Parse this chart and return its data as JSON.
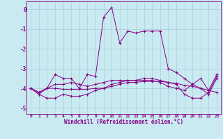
{
  "title": "",
  "xlabel": "Windchill (Refroidissement éolien,°C)",
  "xlim": [
    -0.5,
    23.5
  ],
  "ylim": [
    -5.3,
    0.4
  ],
  "yticks": [
    0,
    -1,
    -2,
    -3,
    -4,
    -5
  ],
  "xticks": [
    0,
    1,
    2,
    3,
    4,
    5,
    6,
    7,
    8,
    9,
    10,
    11,
    12,
    13,
    14,
    15,
    16,
    17,
    18,
    19,
    20,
    21,
    22,
    23
  ],
  "bg_color": "#c8eaf0",
  "line_color": "#880088",
  "grid_color": "#aaccdd",
  "lines": [
    {
      "x": [
        0,
        1,
        2,
        3,
        4,
        5,
        6,
        7,
        8,
        9,
        10,
        11,
        12,
        13,
        14,
        15,
        16,
        17,
        18,
        19,
        20,
        21,
        22,
        23
      ],
      "y": [
        -4.0,
        -4.2,
        -4.0,
        -3.3,
        -3.5,
        -3.5,
        -4.0,
        -3.3,
        -3.4,
        -0.4,
        0.1,
        -1.7,
        -1.1,
        -1.2,
        -1.1,
        -1.1,
        -1.1,
        -3.0,
        -3.2,
        -3.5,
        -3.8,
        -3.5,
        -4.1,
        -3.3
      ]
    },
    {
      "x": [
        0,
        1,
        2,
        3,
        4,
        5,
        6,
        7,
        8,
        9,
        10,
        11,
        12,
        13,
        14,
        15,
        16,
        17,
        18,
        19,
        20,
        21,
        22,
        23
      ],
      "y": [
        -4.0,
        -4.2,
        -4.0,
        -4.0,
        -4.05,
        -4.05,
        -4.05,
        -4.05,
        -4.0,
        -4.0,
        -3.9,
        -3.8,
        -3.7,
        -3.7,
        -3.65,
        -3.65,
        -3.65,
        -3.7,
        -3.75,
        -3.85,
        -3.9,
        -4.0,
        -4.1,
        -4.2
      ]
    },
    {
      "x": [
        0,
        1,
        2,
        3,
        4,
        5,
        6,
        7,
        8,
        9,
        10,
        11,
        12,
        13,
        14,
        15,
        16,
        17,
        18,
        19,
        20,
        21,
        22,
        23
      ],
      "y": [
        -4.0,
        -4.3,
        -4.5,
        -4.5,
        -4.3,
        -4.4,
        -4.4,
        -4.3,
        -4.1,
        -4.0,
        -3.8,
        -3.7,
        -3.6,
        -3.6,
        -3.5,
        -3.5,
        -3.6,
        -3.7,
        -3.8,
        -4.3,
        -4.5,
        -4.5,
        -4.2,
        -3.4
      ]
    },
    {
      "x": [
        0,
        1,
        2,
        3,
        4,
        5,
        6,
        7,
        8,
        9,
        10,
        11,
        12,
        13,
        14,
        15,
        16,
        17,
        18,
        19,
        20,
        21,
        22,
        23
      ],
      "y": [
        -4.0,
        -4.3,
        -4.0,
        -3.8,
        -3.8,
        -3.7,
        -3.8,
        -3.9,
        -3.8,
        -3.7,
        -3.6,
        -3.6,
        -3.6,
        -3.6,
        -3.6,
        -3.6,
        -3.7,
        -3.9,
        -4.0,
        -4.1,
        -3.8,
        -4.0,
        -4.3,
        -3.5
      ]
    }
  ]
}
